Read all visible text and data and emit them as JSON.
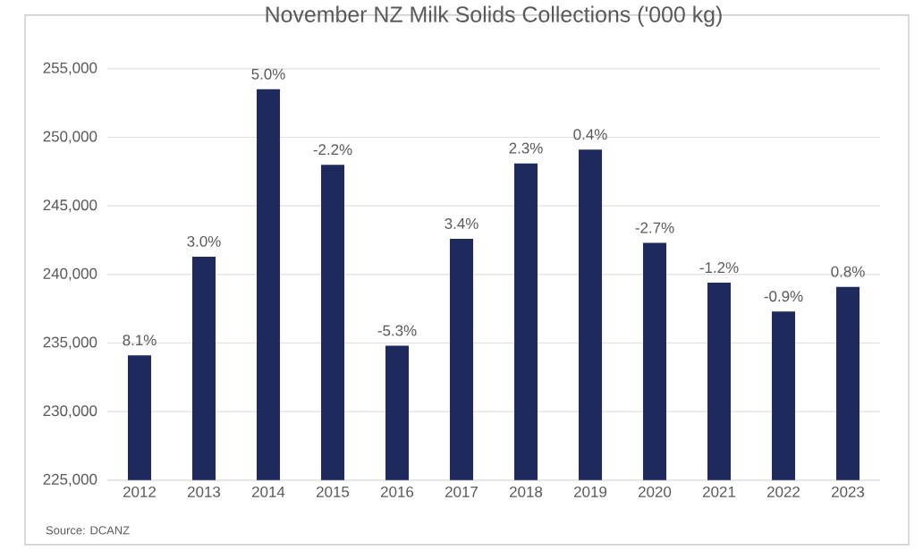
{
  "chart_data": {
    "type": "bar",
    "title": "November  NZ Milk Solids Collections ('000 kg)",
    "categories": [
      "2012",
      "2013",
      "2014",
      "2015",
      "2016",
      "2017",
      "2018",
      "2019",
      "2020",
      "2021",
      "2022",
      "2023"
    ],
    "values": [
      234100,
      241300,
      253500,
      248000,
      234800,
      242600,
      248100,
      249100,
      242300,
      239400,
      237300,
      239100
    ],
    "color": "#1f2a5c",
    "ylim": [
      225000,
      255000
    ],
    "yticks": [
      {
        "value": 225000,
        "label": "225,000"
      },
      {
        "value": 230000,
        "label": "230,000"
      },
      {
        "value": 235000,
        "label": "235,000"
      },
      {
        "value": 240000,
        "label": "240,000"
      },
      {
        "value": 245000,
        "label": "245,000"
      },
      {
        "value": 250000,
        "label": "250,000"
      },
      {
        "value": 255000,
        "label": "255,000"
      }
    ],
    "grid": "y",
    "annotations": [
      {
        "text": "8.1%",
        "x": "2012",
        "y": 234100
      },
      {
        "text": "3.0%",
        "x": "2013",
        "y": 241300
      },
      {
        "text": "5.0%",
        "x": "2014",
        "y": 253500
      },
      {
        "text": "-2.2%",
        "x": "2015",
        "y": 248000
      },
      {
        "text": "-5.3%",
        "x": "2016",
        "y": 234800
      },
      {
        "text": "3.4%",
        "x": "2017",
        "y": 242600
      },
      {
        "text": "2.3%",
        "x": "2018",
        "y": 248100
      },
      {
        "text": "0.4%",
        "x": "2019",
        "y": 249100
      },
      {
        "text": "-2.7%",
        "x": "2020",
        "y": 242300
      },
      {
        "text": "-1.2%",
        "x": "2021",
        "y": 239400
      },
      {
        "text": "-0.9%",
        "x": "2022",
        "y": 237300
      },
      {
        "text": "0.8%",
        "x": "2023",
        "y": 239100
      },
      "Source: DCANZ"
    ]
  }
}
